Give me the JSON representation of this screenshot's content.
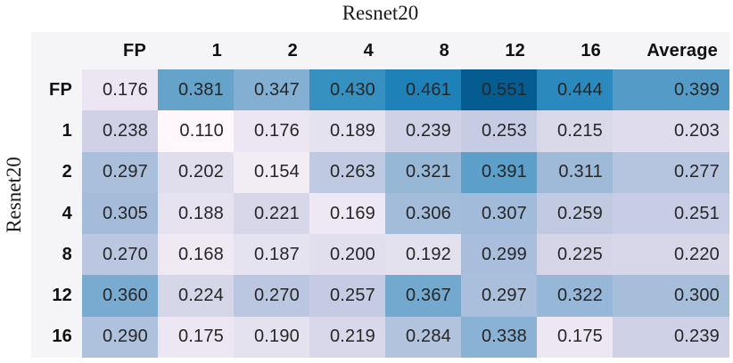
{
  "figure": {
    "title": "Resnet20",
    "y_axis_label": "Resnet20"
  },
  "chart_data": {
    "type": "heatmap",
    "title": "Resnet20",
    "ylabel": "Resnet20",
    "xlabel": "",
    "columns": [
      "FP",
      "1",
      "2",
      "4",
      "8",
      "12",
      "16",
      "Average"
    ],
    "rows": [
      "FP",
      "1",
      "2",
      "4",
      "8",
      "12",
      "16"
    ],
    "values": [
      [
        0.176,
        0.381,
        0.347,
        0.43,
        0.461,
        0.551,
        0.444,
        0.399
      ],
      [
        0.238,
        0.11,
        0.176,
        0.189,
        0.239,
        0.253,
        0.215,
        0.203
      ],
      [
        0.297,
        0.202,
        0.154,
        0.263,
        0.321,
        0.391,
        0.311,
        0.277
      ],
      [
        0.305,
        0.188,
        0.221,
        0.169,
        0.306,
        0.307,
        0.259,
        0.251
      ],
      [
        0.27,
        0.168,
        0.187,
        0.2,
        0.192,
        0.299,
        0.225,
        0.22
      ],
      [
        0.36,
        0.224,
        0.27,
        0.257,
        0.367,
        0.297,
        0.322,
        0.3
      ],
      [
        0.29,
        0.175,
        0.19,
        0.219,
        0.284,
        0.338,
        0.175,
        0.239
      ]
    ],
    "value_decimals": 3,
    "grid": false,
    "legend": "none",
    "colormap": {
      "name": "PuBu",
      "vmin": 0.11,
      "vmax": 0.622,
      "stops": [
        [
          0.0,
          "#fff7fb"
        ],
        [
          0.125,
          "#ece7f2"
        ],
        [
          0.25,
          "#d0d1e6"
        ],
        [
          0.375,
          "#a6bddb"
        ],
        [
          0.5,
          "#74a9cf"
        ],
        [
          0.625,
          "#3690c0"
        ],
        [
          0.75,
          "#0570b0"
        ],
        [
          0.875,
          "#045a8d"
        ],
        [
          1.0,
          "#023858"
        ]
      ]
    }
  },
  "colors": {
    "page_bg": "#ffffff",
    "header_bg": "#f5f5f7",
    "cell_text": "#262626",
    "header_text": "#111111",
    "title_text": "#1a1a1a"
  }
}
